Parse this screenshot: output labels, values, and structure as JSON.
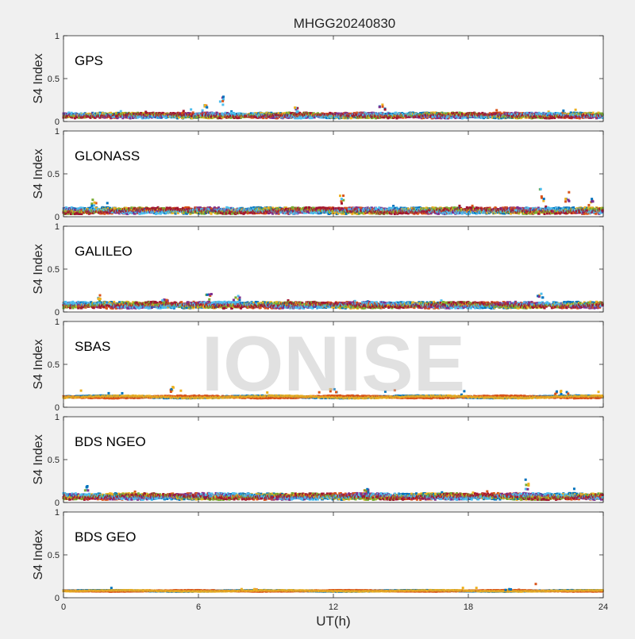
{
  "chart_data": {
    "type": "scatter",
    "title": "MHGG20240830",
    "xlabel": "UT(h)",
    "ylabel": "S4 Index",
    "xlim": [
      0,
      24
    ],
    "ylim": [
      0,
      1
    ],
    "x_ticks": [
      0,
      6,
      12,
      18,
      24
    ],
    "y_ticks": [
      0,
      0.5,
      1
    ],
    "y_tick_labels": [
      "0",
      "0.5",
      "1"
    ],
    "watermark": "IONISE",
    "grid": false,
    "series_colors": [
      "#0072BD",
      "#D95319",
      "#EDB120",
      "#7E2F8E",
      "#77AC30",
      "#4DBEEE",
      "#A2142F"
    ],
    "panels": [
      {
        "label": "GPS",
        "base": 0.07,
        "spread": 0.03,
        "peaks": [
          [
            7.0,
            0.32
          ],
          [
            14.2,
            0.2
          ],
          [
            6.4,
            0.19
          ],
          [
            10.3,
            0.17
          ]
        ]
      },
      {
        "label": "GLONASS",
        "base": 0.07,
        "spread": 0.035,
        "peaks": [
          [
            1.3,
            0.2
          ],
          [
            12.4,
            0.25
          ],
          [
            21.3,
            0.33
          ],
          [
            22.4,
            0.3
          ],
          [
            23.5,
            0.22
          ]
        ]
      },
      {
        "label": "GALILEO",
        "base": 0.08,
        "spread": 0.035,
        "peaks": [
          [
            1.5,
            0.2
          ],
          [
            6.5,
            0.22
          ],
          [
            7.7,
            0.19
          ],
          [
            21.2,
            0.22
          ],
          [
            4.5,
            0.16
          ]
        ]
      },
      {
        "label": "SBAS",
        "base": 0.12,
        "spread": 0.015,
        "peaks": [
          [
            4.8,
            0.24
          ],
          [
            12.0,
            0.21
          ],
          [
            22.0,
            0.2
          ]
        ]
      },
      {
        "label": "BDS NGEO",
        "base": 0.07,
        "spread": 0.035,
        "peaks": [
          [
            1.1,
            0.22
          ],
          [
            20.6,
            0.27
          ],
          [
            13.5,
            0.17
          ]
        ]
      },
      {
        "label": "BDS GEO",
        "base": 0.08,
        "spread": 0.008,
        "peaks": [
          [
            8.5,
            0.1
          ],
          [
            19.8,
            0.1
          ]
        ]
      }
    ]
  }
}
